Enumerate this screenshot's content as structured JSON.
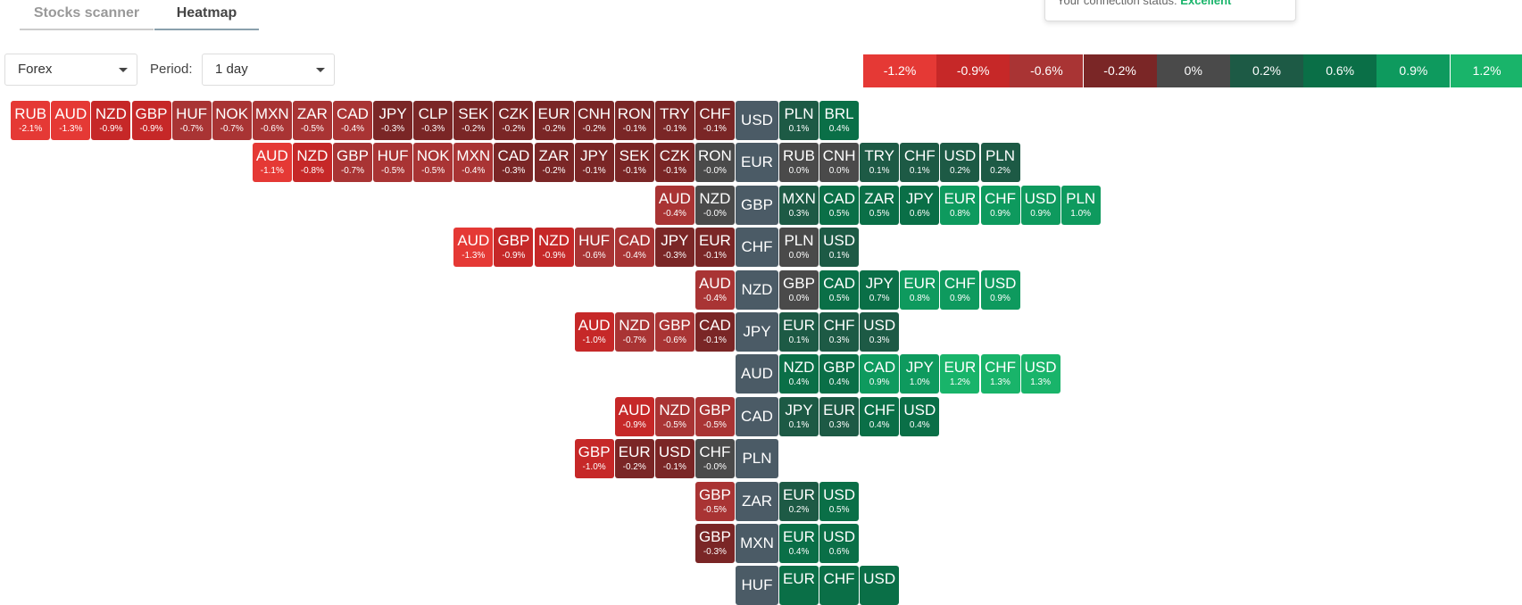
{
  "tabs": [
    "Stocks scanner",
    "Heatmap"
  ],
  "connection": {
    "label": "Your connection status:",
    "status": "Excellent"
  },
  "market": "Forex",
  "period_label": "Period:",
  "period": "1 day",
  "legend": [
    {
      "label": "-1.2%",
      "color": "#e53935"
    },
    {
      "label": "-0.9%",
      "color": "#c62828"
    },
    {
      "label": "-0.6%",
      "color": "#a93434"
    },
    {
      "label": "-0.2%",
      "color": "#7a2626"
    },
    {
      "label": "0%",
      "color": "#4a4a4a"
    },
    {
      "label": "0.2%",
      "color": "#1d5a45"
    },
    {
      "label": "0.6%",
      "color": "#0a6f47"
    },
    {
      "label": "0.9%",
      "color": "#0e9a5e"
    },
    {
      "label": "1.2%",
      "color": "#19b46a"
    }
  ],
  "rows": [
    {
      "base": "USD",
      "left": [
        {
          "code": "RUB",
          "change": "-2.1%"
        },
        {
          "code": "AUD",
          "change": "-1.3%"
        },
        {
          "code": "NZD",
          "change": "-0.9%"
        },
        {
          "code": "GBP",
          "change": "-0.9%"
        },
        {
          "code": "HUF",
          "change": "-0.7%"
        },
        {
          "code": "NOK",
          "change": "-0.7%"
        },
        {
          "code": "MXN",
          "change": "-0.6%"
        },
        {
          "code": "ZAR",
          "change": "-0.5%"
        },
        {
          "code": "CAD",
          "change": "-0.4%"
        },
        {
          "code": "JPY",
          "change": "-0.3%"
        },
        {
          "code": "CLP",
          "change": "-0.3%"
        },
        {
          "code": "SEK",
          "change": "-0.2%"
        },
        {
          "code": "CZK",
          "change": "-0.2%"
        },
        {
          "code": "EUR",
          "change": "-0.2%"
        },
        {
          "code": "CNH",
          "change": "-0.2%"
        },
        {
          "code": "RON",
          "change": "-0.1%"
        },
        {
          "code": "TRY",
          "change": "-0.1%"
        },
        {
          "code": "CHF",
          "change": "-0.1%"
        }
      ],
      "right": [
        {
          "code": "PLN",
          "change": "0.1%"
        },
        {
          "code": "BRL",
          "change": "0.4%"
        }
      ]
    },
    {
      "base": "EUR",
      "left": [
        {
          "code": "AUD",
          "change": "-1.1%"
        },
        {
          "code": "NZD",
          "change": "-0.8%"
        },
        {
          "code": "GBP",
          "change": "-0.7%"
        },
        {
          "code": "HUF",
          "change": "-0.5%"
        },
        {
          "code": "NOK",
          "change": "-0.5%"
        },
        {
          "code": "MXN",
          "change": "-0.4%"
        },
        {
          "code": "CAD",
          "change": "-0.3%"
        },
        {
          "code": "ZAR",
          "change": "-0.2%"
        },
        {
          "code": "JPY",
          "change": "-0.1%"
        },
        {
          "code": "SEK",
          "change": "-0.1%"
        },
        {
          "code": "CZK",
          "change": "-0.1%"
        },
        {
          "code": "RON",
          "change": "-0.0%"
        }
      ],
      "right": [
        {
          "code": "RUB",
          "change": "0.0%"
        },
        {
          "code": "CNH",
          "change": "0.0%"
        },
        {
          "code": "TRY",
          "change": "0.1%"
        },
        {
          "code": "CHF",
          "change": "0.1%"
        },
        {
          "code": "USD",
          "change": "0.2%"
        },
        {
          "code": "PLN",
          "change": "0.2%"
        }
      ]
    },
    {
      "base": "GBP",
      "left": [
        {
          "code": "AUD",
          "change": "-0.4%"
        },
        {
          "code": "NZD",
          "change": "-0.0%"
        }
      ],
      "right": [
        {
          "code": "MXN",
          "change": "0.3%"
        },
        {
          "code": "CAD",
          "change": "0.5%"
        },
        {
          "code": "ZAR",
          "change": "0.5%"
        },
        {
          "code": "JPY",
          "change": "0.6%"
        },
        {
          "code": "EUR",
          "change": "0.8%"
        },
        {
          "code": "CHF",
          "change": "0.9%"
        },
        {
          "code": "USD",
          "change": "0.9%"
        },
        {
          "code": "PLN",
          "change": "1.0%"
        }
      ]
    },
    {
      "base": "CHF",
      "left": [
        {
          "code": "AUD",
          "change": "-1.3%"
        },
        {
          "code": "GBP",
          "change": "-0.9%"
        },
        {
          "code": "NZD",
          "change": "-0.9%"
        },
        {
          "code": "HUF",
          "change": "-0.6%"
        },
        {
          "code": "CAD",
          "change": "-0.4%"
        },
        {
          "code": "JPY",
          "change": "-0.3%"
        },
        {
          "code": "EUR",
          "change": "-0.1%"
        }
      ],
      "right": [
        {
          "code": "PLN",
          "change": "0.0%"
        },
        {
          "code": "USD",
          "change": "0.1%"
        }
      ]
    },
    {
      "base": "NZD",
      "left": [
        {
          "code": "AUD",
          "change": "-0.4%"
        }
      ],
      "right": [
        {
          "code": "GBP",
          "change": "0.0%"
        },
        {
          "code": "CAD",
          "change": "0.5%"
        },
        {
          "code": "JPY",
          "change": "0.7%"
        },
        {
          "code": "EUR",
          "change": "0.8%"
        },
        {
          "code": "CHF",
          "change": "0.9%"
        },
        {
          "code": "USD",
          "change": "0.9%"
        }
      ]
    },
    {
      "base": "JPY",
      "left": [
        {
          "code": "AUD",
          "change": "-1.0%"
        },
        {
          "code": "NZD",
          "change": "-0.7%"
        },
        {
          "code": "GBP",
          "change": "-0.6%"
        },
        {
          "code": "CAD",
          "change": "-0.1%"
        }
      ],
      "right": [
        {
          "code": "EUR",
          "change": "0.1%"
        },
        {
          "code": "CHF",
          "change": "0.3%"
        },
        {
          "code": "USD",
          "change": "0.3%"
        }
      ]
    },
    {
      "base": "AUD",
      "left": [],
      "right": [
        {
          "code": "NZD",
          "change": "0.4%"
        },
        {
          "code": "GBP",
          "change": "0.4%"
        },
        {
          "code": "CAD",
          "change": "0.9%"
        },
        {
          "code": "JPY",
          "change": "1.0%"
        },
        {
          "code": "EUR",
          "change": "1.2%"
        },
        {
          "code": "CHF",
          "change": "1.3%"
        },
        {
          "code": "USD",
          "change": "1.3%"
        }
      ]
    },
    {
      "base": "CAD",
      "left": [
        {
          "code": "AUD",
          "change": "-0.9%"
        },
        {
          "code": "NZD",
          "change": "-0.5%"
        },
        {
          "code": "GBP",
          "change": "-0.5%"
        }
      ],
      "right": [
        {
          "code": "JPY",
          "change": "0.1%"
        },
        {
          "code": "EUR",
          "change": "0.3%"
        },
        {
          "code": "CHF",
          "change": "0.4%"
        },
        {
          "code": "USD",
          "change": "0.4%"
        }
      ]
    },
    {
      "base": "PLN",
      "left": [
        {
          "code": "GBP",
          "change": "-1.0%"
        },
        {
          "code": "EUR",
          "change": "-0.2%"
        },
        {
          "code": "USD",
          "change": "-0.1%"
        },
        {
          "code": "CHF",
          "change": "-0.0%"
        }
      ],
      "right": []
    },
    {
      "base": "ZAR",
      "left": [
        {
          "code": "GBP",
          "change": "-0.5%"
        }
      ],
      "right": [
        {
          "code": "EUR",
          "change": "0.2%"
        },
        {
          "code": "USD",
          "change": "0.5%"
        }
      ]
    },
    {
      "base": "MXN",
      "left": [
        {
          "code": "GBP",
          "change": "-0.3%"
        }
      ],
      "right": [
        {
          "code": "EUR",
          "change": "0.4%"
        },
        {
          "code": "USD",
          "change": "0.6%"
        }
      ]
    },
    {
      "base": "HUF",
      "left": [],
      "right": [
        {
          "code": "EUR"
        },
        {
          "code": "CHF"
        },
        {
          "code": "USD"
        }
      ]
    }
  ]
}
